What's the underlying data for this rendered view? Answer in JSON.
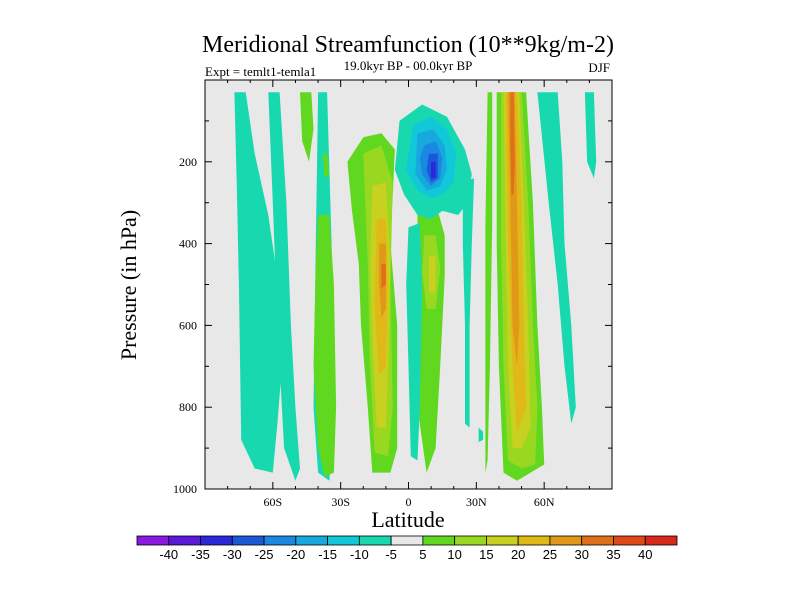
{
  "chart_data": {
    "type": "heatmap",
    "title": "Meridional Streamfunction (10**9kg/m-2)",
    "subtitle": "19.0kyr BP - 00.0kyr BP",
    "left_label": "Expt = temlt1-temla1",
    "right_label": "DJF",
    "xlabel": "Latitude",
    "ylabel": "Pressure (in hPa)",
    "x_range": [
      -90,
      90
    ],
    "y_range": [
      0,
      1000
    ],
    "x_ticks": [
      -60,
      -30,
      0,
      30,
      60
    ],
    "x_tick_labels": [
      "60S",
      "30S",
      "0",
      "30N",
      "60N"
    ],
    "y_ticks": [
      200,
      400,
      600,
      800,
      1000
    ],
    "y_tick_labels": [
      "200",
      "400",
      "600",
      "800",
      "1000"
    ],
    "colorbar": {
      "labels": [
        "-40",
        "-35",
        "-30",
        "-25",
        "-20",
        "-15",
        "-10",
        "-5",
        "5",
        "10",
        "15",
        "20",
        "25",
        "30",
        "35",
        "40"
      ],
      "colors": [
        "#8a18e0",
        "#5a1ad8",
        "#2a28d8",
        "#1a58d8",
        "#1a88e0",
        "#18a8e0",
        "#10c8d8",
        "#18d8b0",
        "#e8e8e8",
        "#60d820",
        "#98d820",
        "#c8d020",
        "#e0b818",
        "#e09818",
        "#e07018",
        "#e04818",
        "#d82818"
      ]
    },
    "regions": [
      {
        "level": "-5",
        "color": "#18d8b0",
        "pts": [
          [
            -77,
            30
          ],
          [
            -72,
            30
          ],
          [
            -68,
            180
          ],
          [
            -62,
            330
          ],
          [
            -57,
            520
          ],
          [
            -56,
            700
          ],
          [
            -58,
            840
          ],
          [
            -60,
            960
          ],
          [
            -68,
            950
          ],
          [
            -74,
            880
          ],
          [
            -75,
            500
          ],
          [
            -76,
            250
          ]
        ]
      },
      {
        "level": "-5",
        "color": "#18d8b0",
        "pts": [
          [
            -62,
            30
          ],
          [
            -57,
            30
          ],
          [
            -54,
            300
          ],
          [
            -52,
            600
          ],
          [
            -50,
            800
          ],
          [
            -48,
            950
          ],
          [
            -50,
            980
          ],
          [
            -55,
            900
          ],
          [
            -58,
            600
          ],
          [
            -60,
            300
          ]
        ]
      },
      {
        "level": "-5",
        "color": "#18d8b0",
        "pts": [
          [
            -40,
            30
          ],
          [
            -36,
            30
          ],
          [
            -34,
            400
          ],
          [
            -33,
            800
          ],
          [
            -35,
            980
          ],
          [
            -40,
            960
          ],
          [
            -42,
            800
          ],
          [
            -41,
            400
          ]
        ]
      },
      {
        "level": "5",
        "color": "#60d820",
        "pts": [
          [
            -48,
            30
          ],
          [
            -43,
            30
          ],
          [
            -42,
            120
          ],
          [
            -44,
            200
          ],
          [
            -47,
            150
          ]
        ]
      },
      {
        "level": "5",
        "color": "#60d820",
        "pts": [
          [
            -38,
            180
          ],
          [
            -36,
            180
          ],
          [
            -35,
            230
          ],
          [
            -37,
            240
          ]
        ]
      },
      {
        "level": "5",
        "color": "#60d820",
        "pts": [
          [
            -40,
            330
          ],
          [
            -35,
            330
          ],
          [
            -33,
            500
          ],
          [
            -32,
            800
          ],
          [
            -33,
            960
          ],
          [
            -37,
            970
          ],
          [
            -40,
            900
          ],
          [
            -42,
            700
          ],
          [
            -41,
            450
          ]
        ]
      },
      {
        "level": "5",
        "color": "#60d820",
        "pts": [
          [
            -27,
            200
          ],
          [
            -20,
            140
          ],
          [
            -12,
            130
          ],
          [
            -6,
            170
          ],
          [
            -8,
            400
          ],
          [
            -5,
            600
          ],
          [
            -5,
            900
          ],
          [
            -8,
            960
          ],
          [
            -16,
            960
          ],
          [
            -18,
            800
          ],
          [
            -21,
            600
          ],
          [
            -22,
            450
          ],
          [
            -25,
            320
          ]
        ]
      },
      {
        "level": "10",
        "color": "#98d820",
        "pts": [
          [
            -20,
            180
          ],
          [
            -12,
            160
          ],
          [
            -7,
            250
          ],
          [
            -8,
            500
          ],
          [
            -7,
            800
          ],
          [
            -9,
            920
          ],
          [
            -15,
            910
          ],
          [
            -17,
            700
          ],
          [
            -18,
            450
          ]
        ]
      },
      {
        "level": "15",
        "color": "#c8d020",
        "pts": [
          [
            -16,
            260
          ],
          [
            -10,
            250
          ],
          [
            -8,
            450
          ],
          [
            -9,
            700
          ],
          [
            -10,
            850
          ],
          [
            -14,
            850
          ],
          [
            -16,
            650
          ],
          [
            -17,
            450
          ]
        ]
      },
      {
        "level": "20",
        "color": "#e0b818",
        "pts": [
          [
            -14,
            340
          ],
          [
            -10,
            340
          ],
          [
            -9,
            500
          ],
          [
            -10,
            700
          ],
          [
            -13,
            720
          ],
          [
            -15,
            550
          ]
        ]
      },
      {
        "level": "25",
        "color": "#e09818",
        "pts": [
          [
            -13,
            400
          ],
          [
            -10,
            400
          ],
          [
            -10,
            560
          ],
          [
            -12,
            580
          ],
          [
            -13,
            500
          ]
        ]
      },
      {
        "level": "30",
        "color": "#e07018",
        "pts": [
          [
            -12,
            450
          ],
          [
            -10,
            450
          ],
          [
            -10,
            500
          ],
          [
            -12,
            510
          ]
        ]
      },
      {
        "level": "5",
        "color": "#60d820",
        "pts": [
          [
            4,
            310
          ],
          [
            12,
            300
          ],
          [
            16,
            380
          ],
          [
            16,
            480
          ],
          [
            14,
            700
          ],
          [
            12,
            900
          ],
          [
            8,
            960
          ],
          [
            4,
            800
          ],
          [
            4,
            560
          ]
        ]
      },
      {
        "level": "10",
        "color": "#98d820",
        "pts": [
          [
            7,
            380
          ],
          [
            12,
            380
          ],
          [
            14,
            460
          ],
          [
            12,
            560
          ],
          [
            8,
            560
          ],
          [
            6,
            470
          ]
        ]
      },
      {
        "level": "15",
        "color": "#c8d020",
        "pts": [
          [
            9,
            430
          ],
          [
            12,
            430
          ],
          [
            12,
            520
          ],
          [
            9,
            520
          ]
        ]
      },
      {
        "level": "-5",
        "color": "#18d8b0",
        "pts": [
          [
            0,
            360
          ],
          [
            5,
            350
          ],
          [
            6,
            520
          ],
          [
            5,
            800
          ],
          [
            4,
            930
          ],
          [
            1,
            920
          ],
          [
            0,
            700
          ],
          [
            -1,
            500
          ]
        ]
      },
      {
        "level": "-5",
        "color": "#18d8b0",
        "pts": [
          [
            -4,
            100
          ],
          [
            6,
            60
          ],
          [
            17,
            90
          ],
          [
            25,
            170
          ],
          [
            28,
            230
          ],
          [
            26,
            300
          ],
          [
            22,
            330
          ],
          [
            15,
            320
          ],
          [
            10,
            340
          ],
          [
            4,
            330
          ],
          [
            -2,
            280
          ],
          [
            -6,
            220
          ]
        ]
      },
      {
        "level": "-10",
        "color": "#10c8d8",
        "pts": [
          [
            2,
            110
          ],
          [
            10,
            90
          ],
          [
            17,
            120
          ],
          [
            21,
            180
          ],
          [
            20,
            250
          ],
          [
            15,
            280
          ],
          [
            10,
            290
          ],
          [
            4,
            270
          ],
          [
            -1,
            220
          ]
        ]
      },
      {
        "level": "-15",
        "color": "#18a8e0",
        "pts": [
          [
            4,
            130
          ],
          [
            11,
            120
          ],
          [
            16,
            160
          ],
          [
            17,
            220
          ],
          [
            14,
            260
          ],
          [
            8,
            270
          ],
          [
            3,
            230
          ]
        ]
      },
      {
        "level": "-20",
        "color": "#1a88e0",
        "pts": [
          [
            7,
            160
          ],
          [
            12,
            150
          ],
          [
            15,
            190
          ],
          [
            14,
            240
          ],
          [
            10,
            260
          ],
          [
            6,
            230
          ],
          [
            5,
            190
          ]
        ]
      },
      {
        "level": "-25",
        "color": "#1a58d8",
        "pts": [
          [
            9,
            180
          ],
          [
            13,
            180
          ],
          [
            13,
            240
          ],
          [
            10,
            250
          ],
          [
            8,
            220
          ]
        ]
      },
      {
        "level": "-30",
        "color": "#2a28d8",
        "pts": [
          [
            10,
            200
          ],
          [
            12,
            200
          ],
          [
            12,
            240
          ],
          [
            10,
            240
          ]
        ]
      },
      {
        "level": "-5",
        "color": "#18d8b0",
        "pts": [
          [
            24,
            250
          ],
          [
            29,
            240
          ],
          [
            28,
            400
          ],
          [
            27,
            600
          ],
          [
            27,
            850
          ],
          [
            25,
            840
          ],
          [
            25,
            600
          ],
          [
            24,
            400
          ]
        ]
      },
      {
        "level": "5",
        "color": "#60d820",
        "pts": [
          [
            35,
            30
          ],
          [
            37,
            30
          ],
          [
            37,
            350
          ],
          [
            36,
            700
          ],
          [
            35,
            930
          ],
          [
            34,
            960
          ],
          [
            34,
            700
          ],
          [
            34,
            350
          ]
        ]
      },
      {
        "level": "-5",
        "color": "#18d8b0",
        "pts": [
          [
            31,
            850
          ],
          [
            33,
            860
          ],
          [
            33,
            880
          ],
          [
            31,
            885
          ]
        ]
      },
      {
        "level": "5",
        "color": "#60d820",
        "pts": [
          [
            39,
            30
          ],
          [
            52,
            30
          ],
          [
            55,
            300
          ],
          [
            57,
            600
          ],
          [
            59,
            800
          ],
          [
            60,
            940
          ],
          [
            54,
            960
          ],
          [
            48,
            980
          ],
          [
            42,
            960
          ],
          [
            40,
            700
          ],
          [
            39,
            400
          ]
        ]
      },
      {
        "level": "10",
        "color": "#98d820",
        "pts": [
          [
            41,
            30
          ],
          [
            50,
            30
          ],
          [
            53,
            300
          ],
          [
            55,
            600
          ],
          [
            57,
            800
          ],
          [
            56,
            940
          ],
          [
            50,
            950
          ],
          [
            44,
            930
          ],
          [
            42,
            700
          ],
          [
            41,
            400
          ]
        ]
      },
      {
        "level": "15",
        "color": "#c8d020",
        "pts": [
          [
            42,
            30
          ],
          [
            49,
            30
          ],
          [
            51,
            300
          ],
          [
            53,
            600
          ],
          [
            54,
            850
          ],
          [
            50,
            900
          ],
          [
            46,
            900
          ],
          [
            44,
            700
          ],
          [
            43,
            400
          ]
        ]
      },
      {
        "level": "20",
        "color": "#e0b818",
        "pts": [
          [
            43,
            30
          ],
          [
            48,
            30
          ],
          [
            50,
            300
          ],
          [
            51,
            600
          ],
          [
            52,
            800
          ],
          [
            48,
            860
          ],
          [
            46,
            700
          ],
          [
            44,
            400
          ]
        ]
      },
      {
        "level": "25",
        "color": "#e09818",
        "pts": [
          [
            44,
            30
          ],
          [
            47,
            30
          ],
          [
            48,
            300
          ],
          [
            49,
            600
          ],
          [
            48,
            700
          ],
          [
            46,
            600
          ],
          [
            45,
            300
          ]
        ]
      },
      {
        "level": "30",
        "color": "#e07018",
        "pts": [
          [
            45,
            30
          ],
          [
            46.5,
            30
          ],
          [
            47,
            200
          ],
          [
            46.5,
            280
          ],
          [
            45.5,
            280
          ],
          [
            45,
            150
          ]
        ]
      },
      {
        "level": "-5",
        "color": "#18d8b0",
        "pts": [
          [
            57,
            30
          ],
          [
            66,
            30
          ],
          [
            68,
            200
          ],
          [
            69,
            400
          ],
          [
            72,
            600
          ],
          [
            74,
            800
          ],
          [
            72,
            840
          ],
          [
            69,
            700
          ],
          [
            66,
            500
          ],
          [
            62,
            300
          ]
        ]
      },
      {
        "level": "-5",
        "color": "#18d8b0",
        "pts": [
          [
            78,
            30
          ],
          [
            82,
            30
          ],
          [
            83,
            200
          ],
          [
            82,
            240
          ],
          [
            79,
            200
          ]
        ]
      }
    ]
  }
}
